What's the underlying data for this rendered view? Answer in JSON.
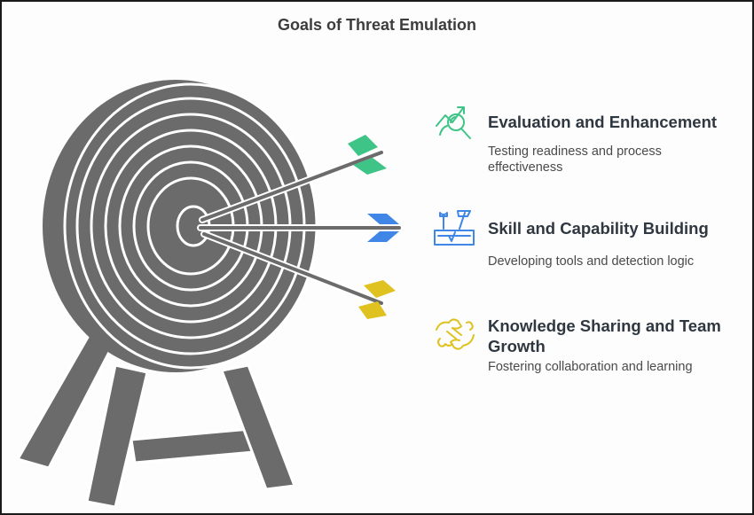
{
  "title": "Goals of Threat Emulation",
  "colors": {
    "target": "#6b6b6b",
    "ring": "#ffffff",
    "arrow_green": "#3ec486",
    "arrow_blue": "#3f86e6",
    "arrow_yellow": "#dfc21f"
  },
  "goals": [
    {
      "heading": "Evaluation and Enhancement",
      "description": "Testing readiness and process effectiveness",
      "icon": "growth-chart-magnifier-icon",
      "color": "#3ec486"
    },
    {
      "heading": "Skill and Capability Building",
      "description": "Developing tools and detection logic",
      "icon": "toolbox-icon",
      "color": "#3f86e6"
    },
    {
      "heading": "Knowledge Sharing and Team Growth",
      "description": "Fostering collaboration and learning",
      "icon": "handshake-puzzle-icon",
      "color": "#dfc21f"
    }
  ]
}
